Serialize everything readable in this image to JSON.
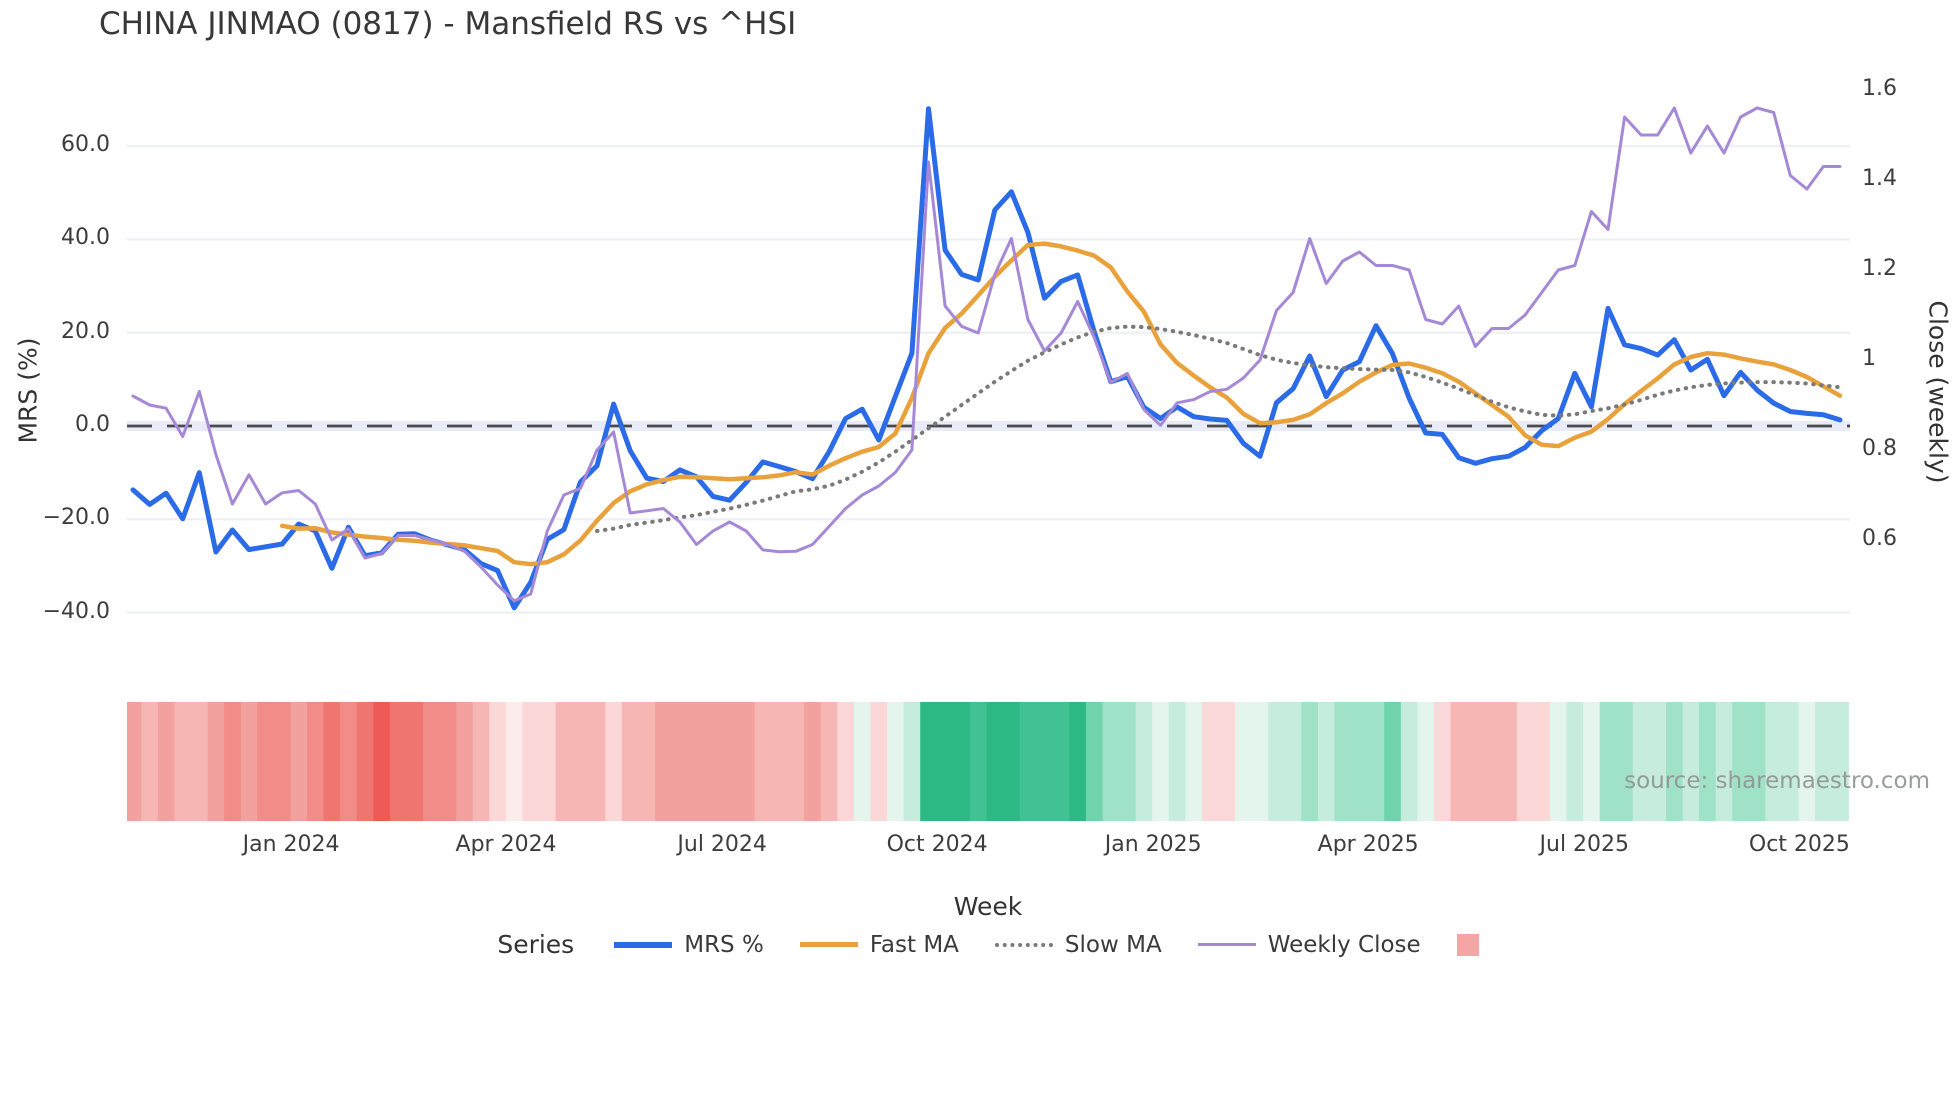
{
  "title": "CHINA JINMAO (0817) - Mansfield RS vs ^HSI",
  "source_note": "source: sharemaestro.com",
  "legend": {
    "title": "Series",
    "items": [
      {
        "label": "MRS %",
        "swatch": "line",
        "color": "#2b6be8",
        "thickness": 6
      },
      {
        "label": "Fast MA",
        "swatch": "line",
        "color": "#e9a23b",
        "thickness": 5
      },
      {
        "label": "Slow MA",
        "swatch": "dotted",
        "color": "#7a7a7a",
        "thickness": 4
      },
      {
        "label": "Weekly Close",
        "swatch": "line",
        "color": "#a689d6",
        "thickness": 3.5
      },
      {
        "label": "",
        "swatch": "square",
        "color": "#f4a6a4",
        "thickness": 22
      }
    ]
  },
  "chart_data": {
    "type": "line",
    "title": "CHINA JINMAO (0817) - Mansfield RS vs ^HSI",
    "xlabel": "Week",
    "n_weeks": 104,
    "x_range_note": "weekly data from late Oct 2023 to late Oct 2025",
    "y_left": {
      "label": "MRS (%)",
      "tick_labels": [
        "60.0",
        "40.0",
        "20.0",
        "0.0",
        "−20.0",
        "−40.0"
      ],
      "tick_values": [
        60,
        40,
        20,
        0,
        -20,
        -40
      ],
      "zero_dash_line": 0,
      "grid": true
    },
    "y_right": {
      "label": "Close (weekly)",
      "tick_labels": [
        "1.6",
        "1.4",
        "1.2",
        "1",
        "0.8",
        "0.6"
      ],
      "tick_values": [
        1.6,
        1.4,
        1.2,
        1.0,
        0.8,
        0.6
      ]
    },
    "x_ticks": [
      {
        "label": "Jan 2024",
        "week_index": 9.54
      },
      {
        "label": "Apr 2024",
        "week_index": 22.51
      },
      {
        "label": "Jul 2024",
        "week_index": 35.55
      },
      {
        "label": "Oct 2024",
        "week_index": 48.52
      },
      {
        "label": "Jan 2025",
        "week_index": 61.56
      },
      {
        "label": "Apr 2025",
        "week_index": 74.53
      },
      {
        "label": "Jul 2025",
        "week_index": 87.57
      },
      {
        "label": "Oct 2025",
        "week_index": 100.55
      }
    ],
    "series": [
      {
        "name": "MRS %",
        "axis": "left",
        "color": "#2b6be8",
        "width": 5,
        "style": "solid",
        "values": [
          -13.7,
          -16.8,
          -14.4,
          -19.9,
          -10,
          -27,
          -22.3,
          -26.5,
          -25.9,
          -25.3,
          -21,
          -22.5,
          -30.5,
          -21.7,
          -27.8,
          -27.2,
          -23.2,
          -23.1,
          -24.5,
          -25.5,
          -26.5,
          -29.5,
          -31,
          -39,
          -33.5,
          -24.3,
          -22.2,
          -12,
          -8.5,
          4.7,
          -5.3,
          -11.2,
          -11.9,
          -9.4,
          -10.9,
          -15.1,
          -15.9,
          -12.1,
          -7.7,
          -8.7,
          -9.8,
          -11.3,
          -5.5,
          1.6,
          3.6,
          -3,
          6.3,
          15.6,
          68,
          37.7,
          32.5,
          31.3,
          46.3,
          50.2,
          41.5,
          27.4,
          31,
          32.4,
          20.2,
          9.5,
          10.6,
          4,
          1.6,
          4.1,
          2,
          1.5,
          1.2,
          -3.7,
          -6.5,
          5,
          8,
          15,
          6.3,
          12,
          13.8,
          21.5,
          15.5,
          6,
          -1.5,
          -1.8,
          -6.8,
          -8,
          -7,
          -6.5,
          -4.6,
          -1,
          1.6,
          11.3,
          4.1,
          25.2,
          17.4,
          16.6,
          15.2,
          18.5,
          12,
          14.3,
          6.5,
          11.5,
          7.7,
          4.9,
          3.1,
          2.7,
          2.4,
          1.3
        ]
      },
      {
        "name": "Fast MA",
        "axis": "left",
        "color": "#e9a23b",
        "width": 4.5,
        "style": "solid",
        "values": [
          null,
          null,
          null,
          null,
          null,
          null,
          null,
          null,
          null,
          -21.4,
          -22,
          -21.9,
          -22.8,
          -23.3,
          -23.7,
          -24,
          -24.4,
          -24.6,
          -25,
          -25.3,
          -25.6,
          -26.2,
          -26.8,
          -29.2,
          -29.6,
          -29.2,
          -27.5,
          -24.5,
          -20.3,
          -16.5,
          -14,
          -12.5,
          -11.6,
          -10.9,
          -11,
          -11.2,
          -11.4,
          -11.2,
          -11,
          -10.6,
          -9.9,
          -10.4,
          -8.5,
          -6.9,
          -5.5,
          -4.5,
          -1.6,
          6,
          15.6,
          21,
          24.1,
          28,
          32,
          35.5,
          38.8,
          39.1,
          38.5,
          37.6,
          36.5,
          34,
          28.8,
          24.5,
          17.5,
          13.5,
          10.8,
          8.3,
          6.1,
          2.6,
          0.6,
          0.8,
          1.3,
          2.5,
          4.9,
          7,
          9.5,
          11.5,
          13.1,
          13.4,
          12.5,
          11.3,
          9.5,
          7,
          4.5,
          2,
          -2,
          -4,
          -4.3,
          -2.5,
          -1.2,
          1.5,
          4.7,
          7.5,
          10.2,
          13.2,
          14.8,
          15.6,
          15.3,
          14.5,
          13.8,
          13.2,
          12,
          10.5,
          8.5,
          6.5
        ]
      },
      {
        "name": "Slow MA",
        "axis": "left",
        "color": "#7a7a7a",
        "width": 4,
        "style": "dotted",
        "values": [
          null,
          null,
          null,
          null,
          null,
          null,
          null,
          null,
          null,
          null,
          null,
          null,
          null,
          null,
          null,
          null,
          null,
          null,
          null,
          null,
          null,
          null,
          null,
          null,
          null,
          null,
          null,
          null,
          -22.5,
          -22,
          -21.2,
          -20.7,
          -20.2,
          -19.6,
          -19.1,
          -18.4,
          -17.7,
          -16.9,
          -16,
          -15,
          -14,
          -13.6,
          -12.8,
          -11.5,
          -9.8,
          -7.8,
          -5.5,
          -3,
          -0.5,
          2,
          4.5,
          7,
          9.5,
          11.8,
          14,
          15.8,
          17.5,
          19,
          20.2,
          21,
          21.3,
          21.2,
          20.8,
          20.2,
          19.5,
          18.7,
          17.8,
          16.5,
          15.2,
          14.2,
          13.5,
          13,
          12.6,
          12.4,
          12.2,
          12.1,
          12,
          11.5,
          10.5,
          9.3,
          8,
          6.6,
          5.2,
          4,
          3.1,
          2.4,
          2.2,
          2.5,
          3.2,
          3.8,
          4.6,
          5.6,
          6.7,
          7.6,
          8.3,
          8.8,
          9.1,
          9.3,
          9.4,
          9.4,
          9.3,
          9.1,
          8.7,
          8.3
        ]
      },
      {
        "name": "Weekly Close",
        "axis": "right",
        "color": "#a689d6",
        "width": 3,
        "style": "solid",
        "values": [
          0.92,
          0.9,
          0.893,
          0.83,
          0.93,
          0.79,
          0.68,
          0.745,
          0.68,
          0.705,
          0.71,
          0.68,
          0.6,
          0.625,
          0.56,
          0.57,
          0.61,
          0.61,
          0.6,
          0.59,
          0.575,
          0.54,
          0.5,
          0.465,
          0.48,
          0.62,
          0.7,
          0.715,
          0.8,
          0.84,
          0.66,
          0.665,
          0.67,
          0.64,
          0.59,
          0.62,
          0.64,
          0.62,
          0.578,
          0.574,
          0.575,
          0.59,
          0.63,
          0.67,
          0.7,
          0.72,
          0.75,
          0.8,
          1.44,
          1.12,
          1.075,
          1.06,
          1.19,
          1.27,
          1.09,
          1.02,
          1.06,
          1.13,
          1.05,
          0.95,
          0.97,
          0.89,
          0.855,
          0.905,
          0.912,
          0.93,
          0.935,
          0.96,
          1,
          1.11,
          1.15,
          1.27,
          1.17,
          1.22,
          1.24,
          1.21,
          1.21,
          1.2,
          1.09,
          1.08,
          1.12,
          1.03,
          1.07,
          1.07,
          1.1,
          1.15,
          1.2,
          1.21,
          1.33,
          1.29,
          1.54,
          1.5,
          1.5,
          1.56,
          1.46,
          1.52,
          1.46,
          1.54,
          1.56,
          1.55,
          1.41,
          1.38,
          1.43,
          1.43
        ]
      }
    ],
    "heat_band": {
      "description": "weekly red/green heat strip under plot",
      "palette": {
        "L1": "#fbd8d7",
        "L2": "#f6b6b4",
        "L3": "#f2a19e",
        "L4": "#f18c88",
        "L5": "#ef7571",
        "L6": "#ee5b56",
        "W": "#fdecec",
        "P1": "#fbd9db",
        "G1": "#e3f5ed",
        "G2": "#c6ecdd",
        "G3": "#9fe2c8",
        "G4": "#6fd3ac",
        "G5": "#41c295",
        "G6": "#2cb983"
      },
      "weeks": [
        "L3",
        "L2",
        "L3",
        "L2",
        "L2",
        "L3",
        "L4",
        "L3",
        "L4",
        "L4",
        "L3",
        "L4",
        "L5",
        "L4",
        "L5",
        "L6",
        "L5",
        "L5",
        "L4",
        "L4",
        "L3",
        "L2",
        "L1",
        "W",
        "L1",
        "L1",
        "L2",
        "L2",
        "L2",
        "L1",
        "L2",
        "L2",
        "L3",
        "L3",
        "L3",
        "L3",
        "L3",
        "L3",
        "L2",
        "L2",
        "L2",
        "L3",
        "L2",
        "L1",
        "G1",
        "L1",
        "G1",
        "G2",
        "G6",
        "G6",
        "G6",
        "G5",
        "G6",
        "G6",
        "G5",
        "G5",
        "G5",
        "G6",
        "G4",
        "G3",
        "G3",
        "G2",
        "G1",
        "G2",
        "G1",
        "P1",
        "P1",
        "G1",
        "G1",
        "G2",
        "G2",
        "G3",
        "G2",
        "G3",
        "G3",
        "G3",
        "G4",
        "G2",
        "G1",
        "P1",
        "L2",
        "L2",
        "L2",
        "L2",
        "L1",
        "L1",
        "G1",
        "G2",
        "G1",
        "G3",
        "G3",
        "G2",
        "G2",
        "G3",
        "G2",
        "G3",
        "G2",
        "G3",
        "G3",
        "G2",
        "G2",
        "G1",
        "G2",
        "G2"
      ]
    },
    "colors": {
      "zero_line": "#4a4a4a",
      "grid": "#eef0f6",
      "zero_band": "#e9ecf8",
      "legend_square": "#f4a6a4"
    }
  }
}
